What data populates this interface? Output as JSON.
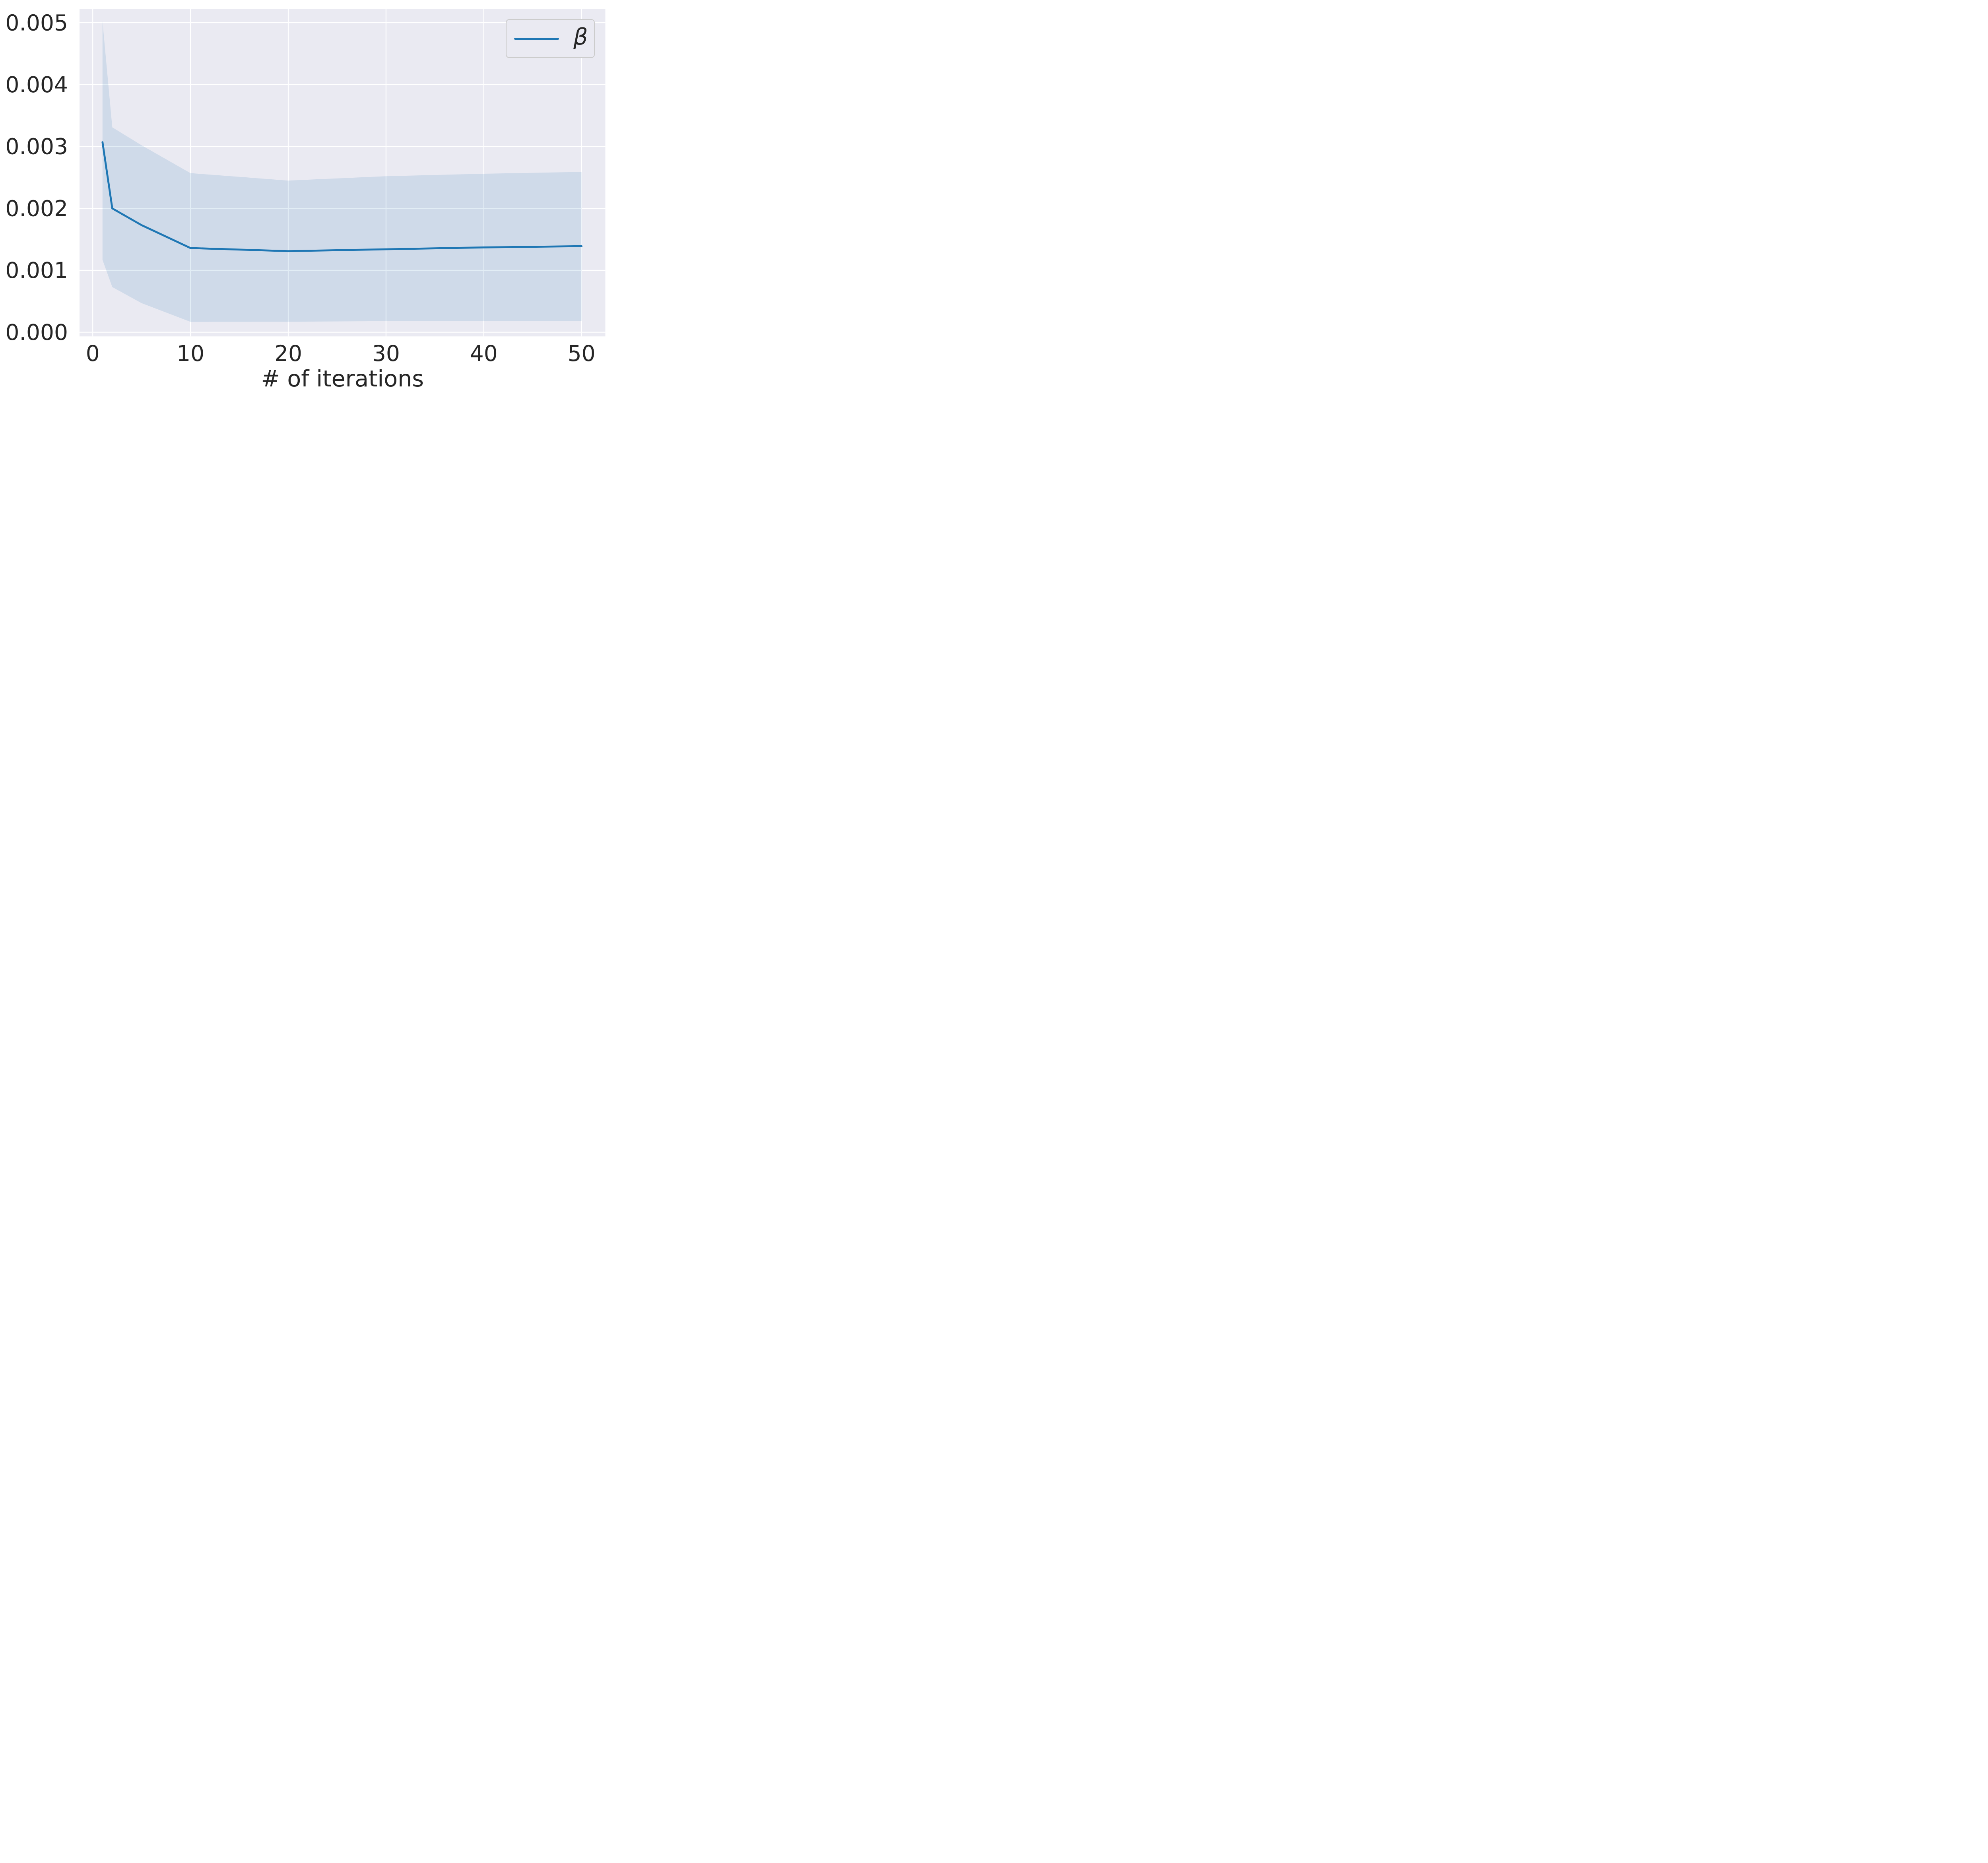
{
  "chart_data": {
    "type": "line",
    "title": "",
    "xlabel": "# of iterations",
    "ylabel": "",
    "x": [
      1,
      2,
      5,
      10,
      20,
      30,
      40,
      50
    ],
    "series": [
      {
        "name": "β",
        "color": "#1f77b4",
        "values": [
          0.00307,
          0.002,
          0.00173,
          0.00136,
          0.00131,
          0.00134,
          0.00137,
          0.00139
        ]
      }
    ],
    "band": {
      "series": "β",
      "upper": [
        0.00502,
        0.00331,
        0.00302,
        0.00257,
        0.00245,
        0.00252,
        0.00256,
        0.00259
      ],
      "lower": [
        0.00117,
        0.00073,
        0.00047,
        0.000168,
        0.00017,
        0.00018,
        0.00018,
        0.00018
      ],
      "opacity": 0.13
    },
    "xticks": {
      "values": [
        0,
        10,
        20,
        30,
        40,
        50
      ],
      "labels": [
        "0",
        "10",
        "20",
        "30",
        "40",
        "50"
      ]
    },
    "yticks": {
      "values": [
        0,
        0.001,
        0.002,
        0.003,
        0.004,
        0.005
      ],
      "labels": [
        "0.000",
        "0.001",
        "0.002",
        "0.003",
        "0.004",
        "0.005"
      ]
    },
    "xlim": [
      -1.35,
      52.43
    ],
    "ylim": [
      -6.74e-05,
      0.005223
    ],
    "grid": true,
    "legend": {
      "position": "upper right",
      "entries": [
        {
          "label": "β",
          "color": "#1f77b4"
        }
      ]
    },
    "colors": {
      "figure_bg": "#ffffff",
      "axes_bg": "#eaeaf2",
      "grid": "#ffffff",
      "tick_label": "#262626",
      "axis_label": "#262626",
      "legend_face": "#eaeaf2",
      "legend_edge": "#cccccc"
    },
    "style": {
      "line_width": 4.8,
      "grid_width": 2.2,
      "tick_font_size": 55,
      "xlabel_font_size": 57
    }
  }
}
